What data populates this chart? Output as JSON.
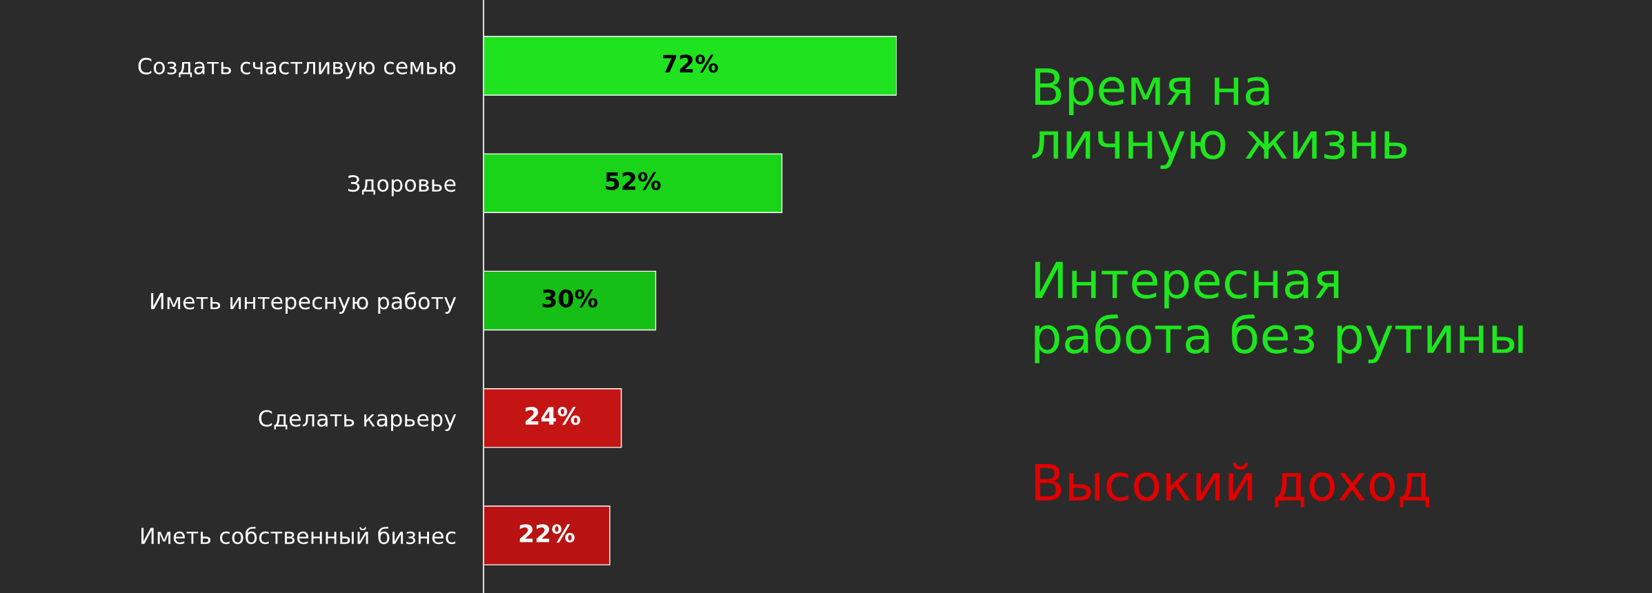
{
  "chart_data": {
    "type": "bar",
    "orientation": "horizontal",
    "categories": [
      "Создать счастливую семью",
      "Здоровье",
      "Иметь интересную работу",
      "Сделать карьеру",
      "Иметь собственный бизнес"
    ],
    "values": [
      72,
      52,
      30,
      24,
      22
    ],
    "colors": [
      "#1fe31f",
      "#1ad41a",
      "#16bf16",
      "#c41414",
      "#b81212"
    ],
    "data_labels": true,
    "value_labels": [
      "72%",
      "52%",
      "30%",
      "24%",
      "22%"
    ],
    "annotations": [
      "Время на\nличную жизнь",
      "Интересная\nработа без рутины",
      "Высокий доход"
    ]
  }
}
